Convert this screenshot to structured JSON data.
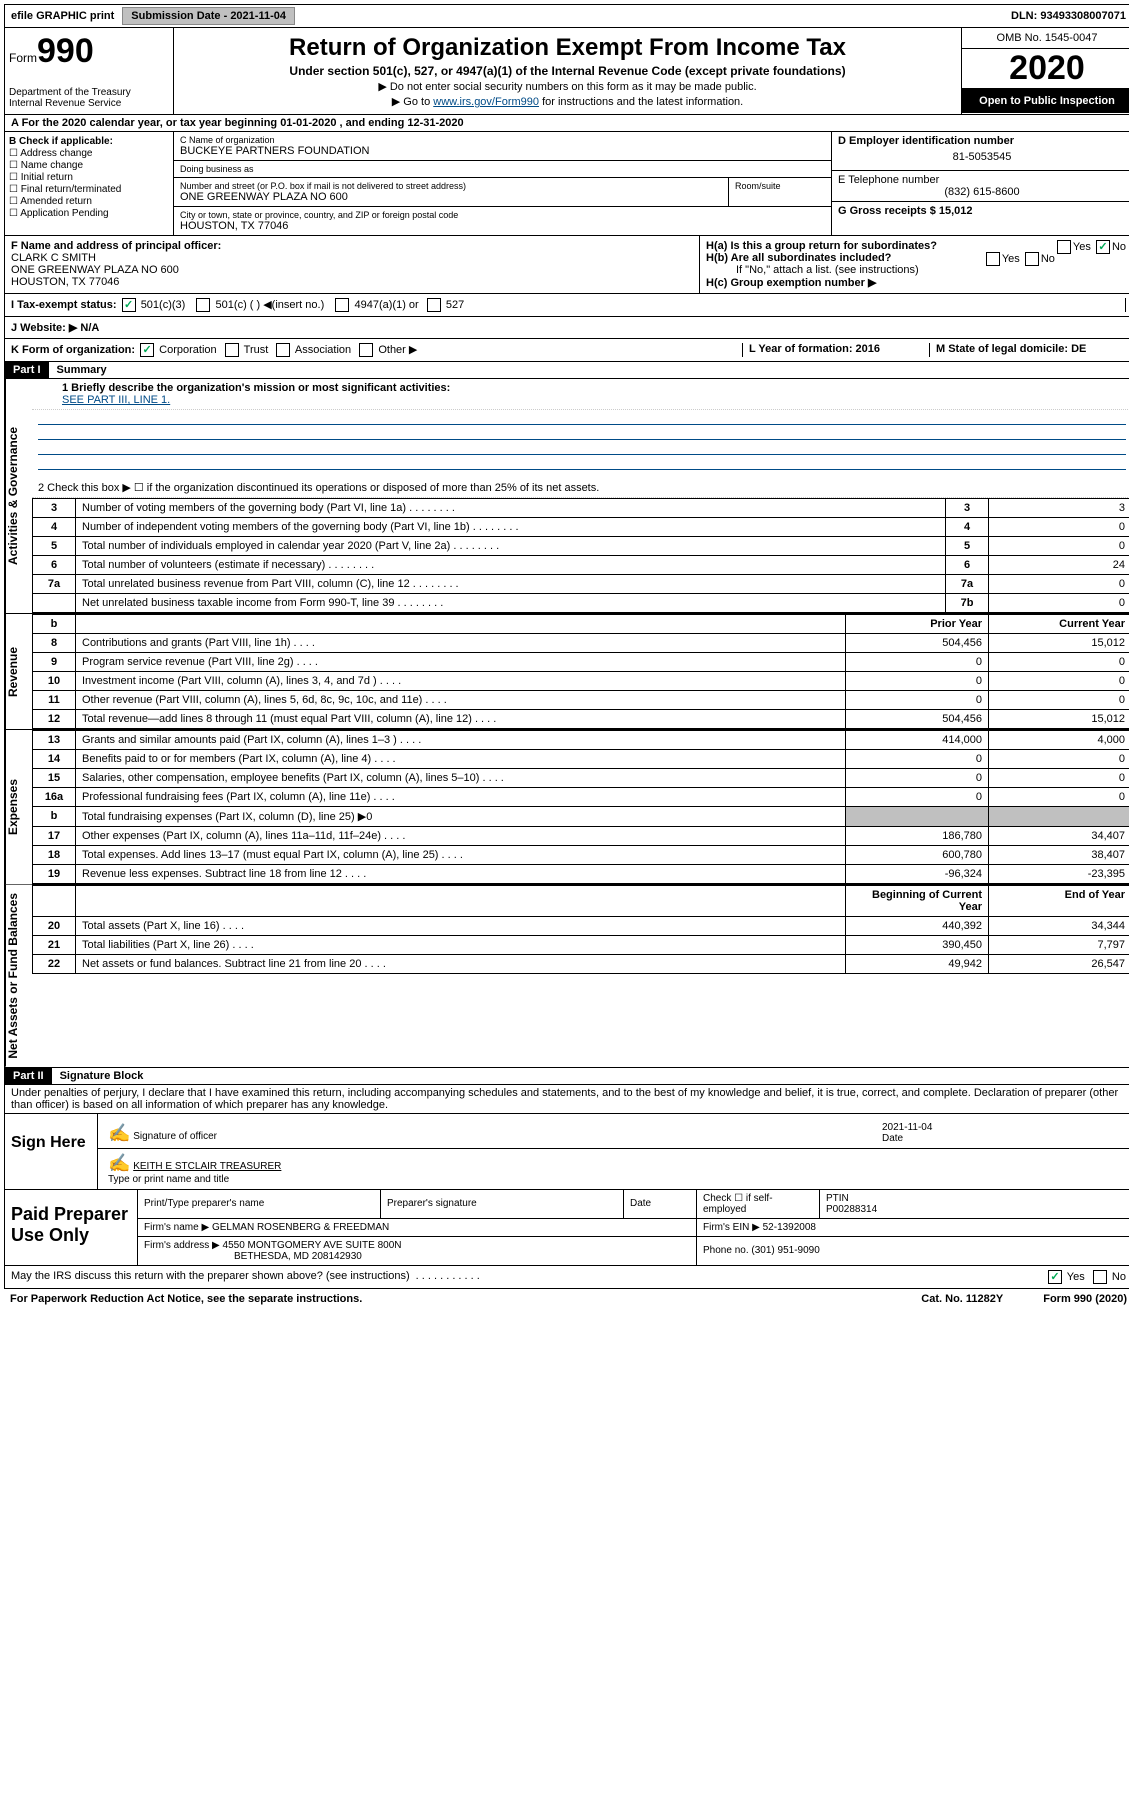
{
  "topbar": {
    "efile": "efile GRAPHIC print",
    "submission_label": "Submission Date - 2021-11-04",
    "dln": "DLN: 93493308007071"
  },
  "header": {
    "form_label": "Form",
    "form_number": "990",
    "dept": "Department of the Treasury\nInternal Revenue Service",
    "title": "Return of Organization Exempt From Income Tax",
    "subtitle": "Under section 501(c), 527, or 4947(a)(1) of the Internal Revenue Code (except private foundations)",
    "instr1": "▶ Do not enter social security numbers on this form as it may be made public.",
    "instr2_pre": "▶ Go to ",
    "instr2_link": "www.irs.gov/Form990",
    "instr2_post": " for instructions and the latest information.",
    "omb": "OMB No. 1545-0047",
    "year": "2020",
    "open": "Open to Public Inspection"
  },
  "row_a": "A For the 2020 calendar year, or tax year beginning 01-01-2020    , and ending 12-31-2020",
  "col_b": {
    "title": "B Check if applicable:",
    "items": [
      "Address change",
      "Name change",
      "Initial return",
      "Final return/terminated",
      "Amended return",
      "Application Pending"
    ]
  },
  "col_c": {
    "name_label": "C Name of organization",
    "name": "BUCKEYE PARTNERS FOUNDATION",
    "dba_label": "Doing business as",
    "dba": "",
    "street_label": "Number and street (or P.O. box if mail is not delivered to street address)",
    "street": "ONE GREENWAY PLAZA NO 600",
    "room_label": "Room/suite",
    "room": "",
    "city_label": "City or town, state or province, country, and ZIP or foreign postal code",
    "city": "HOUSTON, TX  77046"
  },
  "col_d": {
    "ein_label": "D Employer identification number",
    "ein": "81-5053545",
    "phone_label": "E Telephone number",
    "phone": "(832) 615-8600",
    "gross_label": "G Gross receipts $ 15,012"
  },
  "row_f": {
    "label": "F  Name and address of principal officer:",
    "name": "CLARK C SMITH",
    "addr1": "ONE GREENWAY PLAZA NO 600",
    "addr2": "HOUSTON, TX  77046"
  },
  "row_h": {
    "ha": "H(a)  Is this a group return for subordinates?",
    "hb": "H(b)  Are all subordinates included?",
    "hb_note": "If \"No,\" attach a list. (see instructions)",
    "hc": "H(c)  Group exemption number ▶"
  },
  "row_i": {
    "label": "I  Tax-exempt status:",
    "opts": [
      "501(c)(3)",
      "501(c) (  ) ◀(insert no.)",
      "4947(a)(1) or",
      "527"
    ]
  },
  "row_j": "J  Website: ▶   N/A",
  "row_k": {
    "label": "K Form of organization:",
    "opts": [
      "Corporation",
      "Trust",
      "Association",
      "Other ▶"
    ],
    "l": "L Year of formation: 2016",
    "m": "M State of legal domicile: DE"
  },
  "part1": {
    "label": "Part I",
    "title": "Summary"
  },
  "summary": {
    "q1_label": "1  Briefly describe the organization's mission or most significant activities:",
    "q1_value": "SEE PART III, LINE 1.",
    "q2": "2    Check this box ▶ ☐  if the organization discontinued its operations or disposed of more than 25% of its net assets."
  },
  "vbar_labels": {
    "gov": "Activities & Governance",
    "rev": "Revenue",
    "exp": "Expenses",
    "net": "Net Assets or Fund Balances"
  },
  "gov_rows": [
    {
      "n": "3",
      "t": "Number of voting members of the governing body (Part VI, line 1a)",
      "box": "3",
      "v": "3"
    },
    {
      "n": "4",
      "t": "Number of independent voting members of the governing body (Part VI, line 1b)",
      "box": "4",
      "v": "0"
    },
    {
      "n": "5",
      "t": "Total number of individuals employed in calendar year 2020 (Part V, line 2a)",
      "box": "5",
      "v": "0"
    },
    {
      "n": "6",
      "t": "Total number of volunteers (estimate if necessary)",
      "box": "6",
      "v": "24"
    },
    {
      "n": "7a",
      "t": "Total unrelated business revenue from Part VIII, column (C), line 12",
      "box": "7a",
      "v": "0"
    },
    {
      "n": "",
      "t": "Net unrelated business taxable income from Form 990-T, line 39",
      "box": "7b",
      "v": "0"
    }
  ],
  "fin_hdr": {
    "b": "b",
    "prior": "Prior Year",
    "current": "Current Year"
  },
  "rev_rows": [
    {
      "n": "8",
      "t": "Contributions and grants (Part VIII, line 1h)",
      "p": "504,456",
      "c": "15,012"
    },
    {
      "n": "9",
      "t": "Program service revenue (Part VIII, line 2g)",
      "p": "0",
      "c": "0"
    },
    {
      "n": "10",
      "t": "Investment income (Part VIII, column (A), lines 3, 4, and 7d )",
      "p": "0",
      "c": "0"
    },
    {
      "n": "11",
      "t": "Other revenue (Part VIII, column (A), lines 5, 6d, 8c, 9c, 10c, and 11e)",
      "p": "0",
      "c": "0"
    },
    {
      "n": "12",
      "t": "Total revenue—add lines 8 through 11 (must equal Part VIII, column (A), line 12)",
      "p": "504,456",
      "c": "15,012"
    }
  ],
  "exp_rows": [
    {
      "n": "13",
      "t": "Grants and similar amounts paid (Part IX, column (A), lines 1–3 )",
      "p": "414,000",
      "c": "4,000"
    },
    {
      "n": "14",
      "t": "Benefits paid to or for members (Part IX, column (A), line 4)",
      "p": "0",
      "c": "0"
    },
    {
      "n": "15",
      "t": "Salaries, other compensation, employee benefits (Part IX, column (A), lines 5–10)",
      "p": "0",
      "c": "0"
    },
    {
      "n": "16a",
      "t": "Professional fundraising fees (Part IX, column (A), line 11e)",
      "p": "0",
      "c": "0"
    },
    {
      "n": "b",
      "t": "Total fundraising expenses (Part IX, column (D), line 25) ▶0",
      "p": "",
      "c": "",
      "shade": true
    },
    {
      "n": "17",
      "t": "Other expenses (Part IX, column (A), lines 11a–11d, 11f–24e)",
      "p": "186,780",
      "c": "34,407"
    },
    {
      "n": "18",
      "t": "Total expenses. Add lines 13–17 (must equal Part IX, column (A), line 25)",
      "p": "600,780",
      "c": "38,407"
    },
    {
      "n": "19",
      "t": "Revenue less expenses. Subtract line 18 from line 12",
      "p": "-96,324",
      "c": "-23,395"
    }
  ],
  "net_hdr": {
    "begin": "Beginning of Current Year",
    "end": "End of Year"
  },
  "net_rows": [
    {
      "n": "20",
      "t": "Total assets (Part X, line 16)",
      "p": "440,392",
      "c": "34,344"
    },
    {
      "n": "21",
      "t": "Total liabilities (Part X, line 26)",
      "p": "390,450",
      "c": "7,797"
    },
    {
      "n": "22",
      "t": "Net assets or fund balances. Subtract line 21 from line 20",
      "p": "49,942",
      "c": "26,547"
    }
  ],
  "part2": {
    "label": "Part II",
    "title": "Signature Block",
    "penalty": "Under penalties of perjury, I declare that I have examined this return, including accompanying schedules and statements, and to the best of my knowledge and belief, it is true, correct, and complete. Declaration of preparer (other than officer) is based on all information of which preparer has any knowledge."
  },
  "sign": {
    "label": "Sign Here",
    "sig_of_officer": "Signature of officer",
    "date_label": "Date",
    "date": "2021-11-04",
    "name": "KEITH E STCLAIR  TREASURER",
    "name_label": "Type or print name and title"
  },
  "prep": {
    "label": "Paid Preparer Use Only",
    "h1": "Print/Type preparer's name",
    "h2": "Preparer's signature",
    "h3": "Date",
    "h4_a": "Check ☐ if self-employed",
    "h4_b": "PTIN",
    "ptin": "P00288314",
    "firm_label": "Firm's name    ▶",
    "firm": "GELMAN ROSENBERG & FREEDMAN",
    "ein_label": "Firm's EIN ▶",
    "ein": "52-1392008",
    "addr_label": "Firm's address ▶",
    "addr1": "4550 MONTGOMERY AVE SUITE 800N",
    "addr2": "BETHESDA, MD  208142930",
    "phone_label": "Phone no.",
    "phone": "(301) 951-9090"
  },
  "discuss": "May the IRS discuss this return with the preparer shown above? (see instructions)",
  "footer": {
    "left": "For Paperwork Reduction Act Notice, see the separate instructions.",
    "mid": "Cat. No. 11282Y",
    "right": "Form 990 (2020)"
  }
}
